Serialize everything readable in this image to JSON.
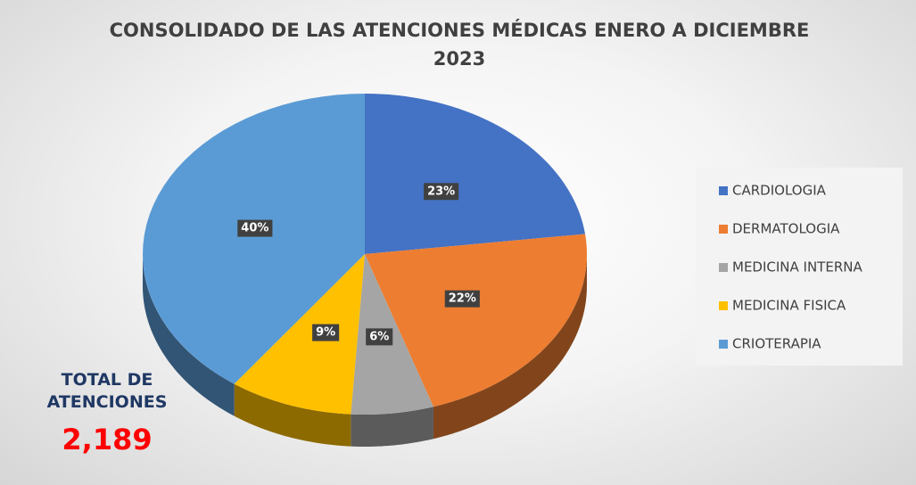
{
  "chart_data": {
    "type": "pie",
    "title": "CONSOLIDADO DE LAS ATENCIONES MÉDICAS ENERO A DICIEMBRE 2023",
    "categories": [
      "CARDIOLOGIA",
      "DERMATOLOGIA",
      "MEDICINA INTERNA",
      "MEDICINA FISICA",
      "CRIOTERAPIA"
    ],
    "values": [
      23,
      22,
      6,
      9,
      40
    ],
    "value_labels": [
      "23%",
      "22%",
      "6%",
      "9%",
      "40%"
    ],
    "colors": [
      "#4472c4",
      "#ed7d31",
      "#a5a5a5",
      "#ffc000",
      "#5b9bd5"
    ],
    "legend": "right",
    "annotations": [
      {
        "text": "TOTAL DE ATENCIONES"
      },
      {
        "text": "2,189"
      }
    ]
  }
}
